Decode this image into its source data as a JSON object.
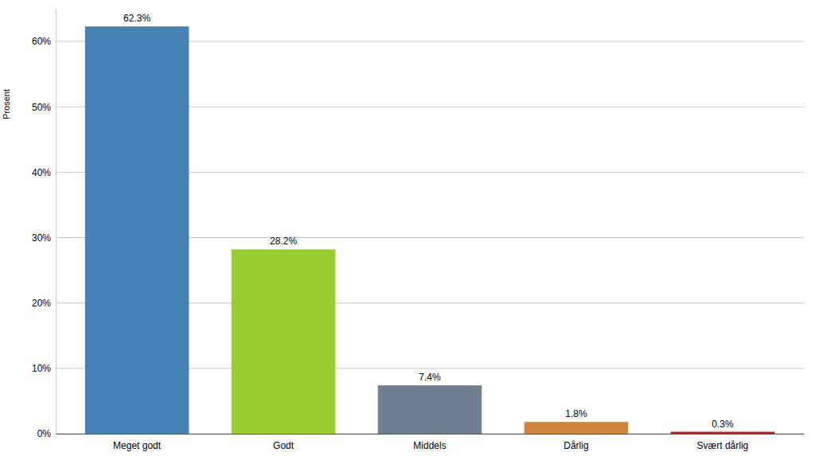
{
  "chart_data": {
    "type": "bar",
    "ylabel": "Prosent",
    "categories": [
      "Meget godt",
      "Godt",
      "Middels",
      "Dårlig",
      "Svært dårlig"
    ],
    "values": [
      62.3,
      28.2,
      7.4,
      1.8,
      0.3
    ],
    "value_labels": [
      "62.3%",
      "28.2%",
      "7.4%",
      "1.8%",
      "0.3%"
    ],
    "colors": [
      "#4682b4",
      "#9acd32",
      "#708090",
      "#cd853f",
      "#b22222"
    ],
    "ylim": [
      0,
      65
    ],
    "yticks": [
      {
        "value": 0,
        "label": "0%"
      },
      {
        "value": 10,
        "label": "10%"
      },
      {
        "value": 20,
        "label": "20%"
      },
      {
        "value": 30,
        "label": "30%"
      },
      {
        "value": 40,
        "label": "40%"
      },
      {
        "value": 50,
        "label": "50%"
      },
      {
        "value": 60,
        "label": "60%"
      }
    ],
    "grid": true,
    "data_labels": true
  }
}
